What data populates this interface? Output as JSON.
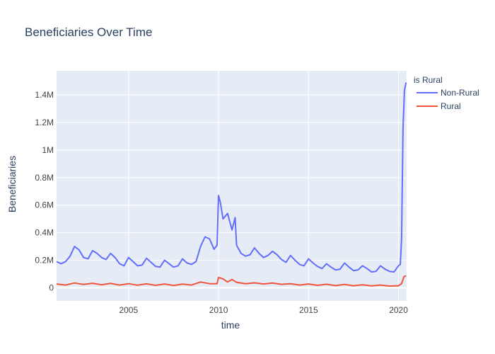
{
  "chart_data": {
    "type": "line",
    "title": "Beneficiaries Over Time",
    "xlabel": "time",
    "ylabel": "Beneficiaries",
    "xlim": [
      2001.0,
      2020.45
    ],
    "ylim": [
      -95000,
      1575000
    ],
    "x_ticks": [
      2005,
      2010,
      2015,
      2020
    ],
    "x_tick_labels": [
      "2005",
      "2010",
      "2015",
      "2020"
    ],
    "y_ticks": [
      0,
      200000,
      400000,
      600000,
      800000,
      1000000,
      1200000,
      1400000
    ],
    "y_tick_labels": [
      "0",
      "0.2M",
      "0.4M",
      "0.6M",
      "0.8M",
      "1M",
      "1.2M",
      "1.4M"
    ],
    "grid": true,
    "plot_background": "#e5ecf6",
    "legend": {
      "title": "is Rural",
      "placement": "top-right outside"
    },
    "series": [
      {
        "name": "Non-Rural",
        "color": "#636efa",
        "x": [
          2001.0,
          2001.25,
          2001.5,
          2001.75,
          2002.0,
          2002.25,
          2002.5,
          2002.75,
          2003.0,
          2003.25,
          2003.5,
          2003.75,
          2004.0,
          2004.25,
          2004.5,
          2004.75,
          2005.0,
          2005.25,
          2005.5,
          2005.75,
          2006.0,
          2006.25,
          2006.5,
          2006.75,
          2007.0,
          2007.25,
          2007.5,
          2007.75,
          2008.0,
          2008.25,
          2008.5,
          2008.75,
          2009.0,
          2009.25,
          2009.5,
          2009.75,
          2009.92,
          2010.0,
          2010.1,
          2010.25,
          2010.5,
          2010.75,
          2010.92,
          2011.0,
          2011.25,
          2011.5,
          2011.75,
          2012.0,
          2012.25,
          2012.5,
          2012.75,
          2013.0,
          2013.25,
          2013.5,
          2013.75,
          2014.0,
          2014.25,
          2014.5,
          2014.75,
          2015.0,
          2015.25,
          2015.5,
          2015.75,
          2016.0,
          2016.25,
          2016.5,
          2016.75,
          2017.0,
          2017.25,
          2017.5,
          2017.75,
          2018.0,
          2018.25,
          2018.5,
          2018.75,
          2019.0,
          2019.25,
          2019.5,
          2019.75,
          2020.0,
          2020.1,
          2020.17,
          2020.25,
          2020.33,
          2020.42
        ],
        "values": [
          190000,
          175000,
          190000,
          230000,
          300000,
          275000,
          220000,
          210000,
          270000,
          250000,
          220000,
          205000,
          250000,
          220000,
          175000,
          160000,
          220000,
          190000,
          160000,
          165000,
          215000,
          185000,
          155000,
          150000,
          200000,
          175000,
          150000,
          160000,
          210000,
          180000,
          170000,
          190000,
          300000,
          370000,
          355000,
          280000,
          310000,
          670000,
          620000,
          500000,
          540000,
          420000,
          510000,
          310000,
          250000,
          230000,
          240000,
          290000,
          250000,
          220000,
          235000,
          265000,
          240000,
          205000,
          185000,
          235000,
          200000,
          170000,
          160000,
          210000,
          180000,
          155000,
          140000,
          175000,
          150000,
          130000,
          135000,
          180000,
          150000,
          125000,
          130000,
          160000,
          140000,
          115000,
          120000,
          160000,
          135000,
          120000,
          115000,
          160000,
          170000,
          360000,
          1150000,
          1430000,
          1490000
        ]
      },
      {
        "name": "Rural",
        "color": "#ef553b",
        "x": [
          2001.0,
          2001.5,
          2002.0,
          2002.5,
          2003.0,
          2003.5,
          2004.0,
          2004.5,
          2005.0,
          2005.5,
          2006.0,
          2006.5,
          2007.0,
          2007.5,
          2008.0,
          2008.5,
          2009.0,
          2009.5,
          2009.92,
          2010.0,
          2010.25,
          2010.5,
          2010.75,
          2011.0,
          2011.5,
          2012.0,
          2012.5,
          2013.0,
          2013.5,
          2014.0,
          2014.5,
          2015.0,
          2015.5,
          2016.0,
          2016.5,
          2017.0,
          2017.5,
          2018.0,
          2018.5,
          2019.0,
          2019.5,
          2020.0,
          2020.17,
          2020.3,
          2020.42
        ],
        "values": [
          28000,
          20000,
          35000,
          24000,
          33000,
          22000,
          32000,
          20000,
          30000,
          19000,
          29000,
          18000,
          28000,
          17000,
          27000,
          20000,
          42000,
          30000,
          30000,
          75000,
          65000,
          42000,
          60000,
          40000,
          30000,
          36000,
          28000,
          35000,
          25000,
          30000,
          20000,
          28000,
          18000,
          26000,
          16000,
          24000,
          15000,
          22000,
          14000,
          20000,
          13000,
          15000,
          30000,
          80000,
          88000
        ]
      }
    ]
  }
}
